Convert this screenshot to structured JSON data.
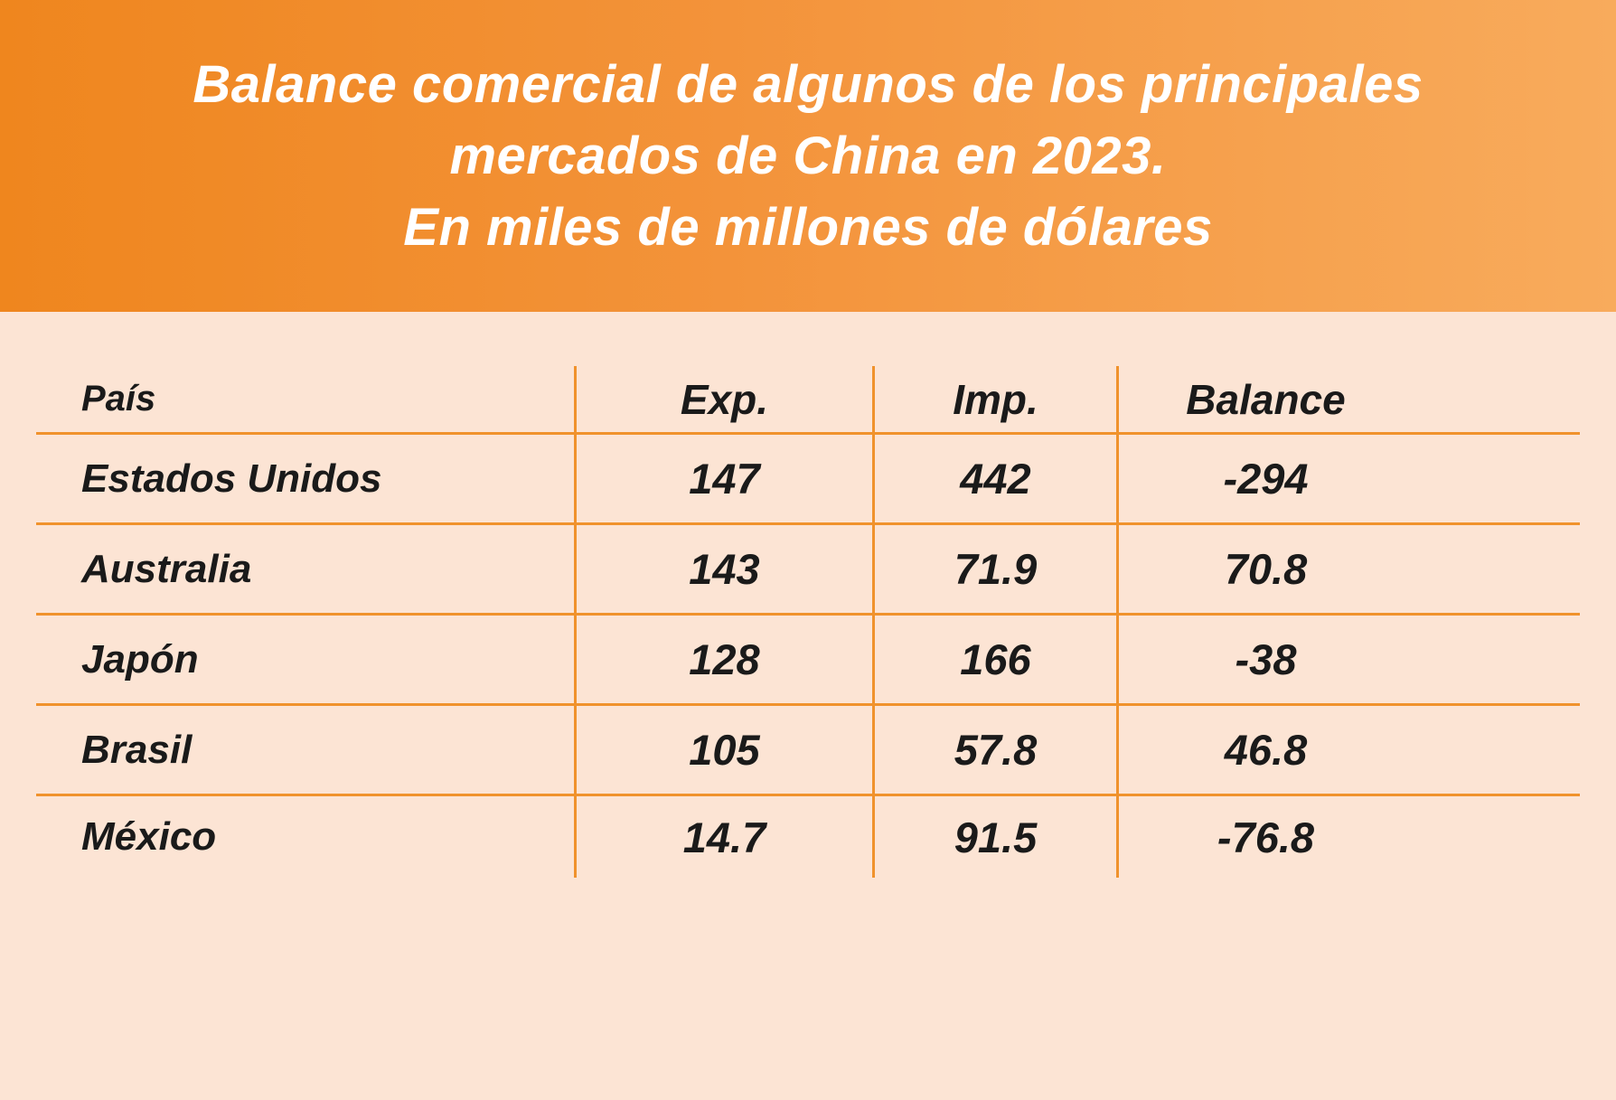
{
  "title": {
    "line1": "Balance comercial de algunos de los principales",
    "line2": "mercados de China en 2023.",
    "line3": "En miles de millones de dólares"
  },
  "colors": {
    "band_gradient_start": "#ef861e",
    "band_gradient_end": "#f8ab5c",
    "body_background": "#fce4d4",
    "grid_line": "#f0922c",
    "title_text": "#ffffff",
    "table_text": "#1a1a1a"
  },
  "chart_data": {
    "type": "table",
    "title": "Balance comercial de algunos de los principales mercados de China en 2023. En miles de millones de dólares",
    "units": "miles de millones de dólares",
    "columns": [
      "País",
      "Exp.",
      "Imp.",
      "Balance"
    ],
    "rows": [
      {
        "pais": "Estados Unidos",
        "exp": "147",
        "imp": "442",
        "balance": "-294"
      },
      {
        "pais": "Australia",
        "exp": "143",
        "imp": "71.9",
        "balance": "70.8"
      },
      {
        "pais": "Japón",
        "exp": "128",
        "imp": "166",
        "balance": "-38"
      },
      {
        "pais": "Brasil",
        "exp": "105",
        "imp": "57.8",
        "balance": "46.8"
      },
      {
        "pais": "México",
        "exp": "14.7",
        "imp": "91.5",
        "balance": "-76.8"
      }
    ]
  }
}
